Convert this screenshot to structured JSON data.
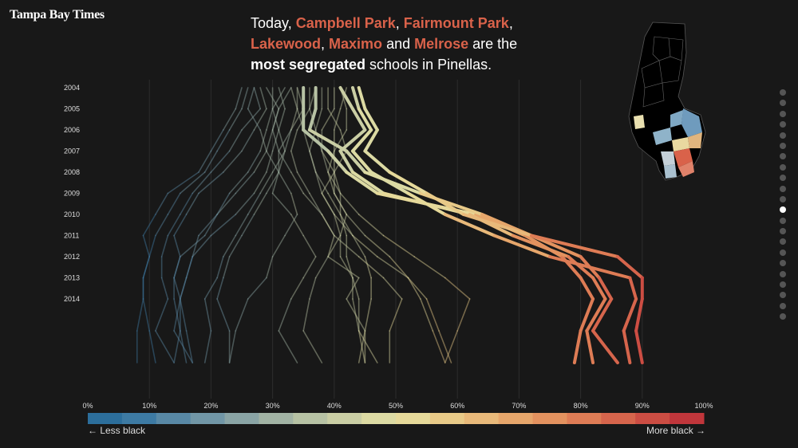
{
  "brand": {
    "logo": "Tampa Bay Times"
  },
  "headline": {
    "prefix": "Today, ",
    "schools": [
      "Campbell Park",
      "Fairmount Park",
      "Lakewood",
      "Maximo",
      "Melrose"
    ],
    "sep1": ", ",
    "sep_and": " and ",
    "mid": " are the",
    "strong": "most segregated",
    "suffix": " schools in Pinellas.",
    "highlight_color": "#d9624a"
  },
  "legend": {
    "left_label": "← Less black",
    "right_label": "More black →",
    "colors": [
      "#2c6e9b",
      "#3d7aa3",
      "#5888a5",
      "#7196a6",
      "#8aa4a5",
      "#a2b3a4",
      "#b7c2a4",
      "#cacea4",
      "#dcdaa3",
      "#e6d99a",
      "#e8ca88",
      "#e8b97a",
      "#e6a66b",
      "#e3925f",
      "#de7c55",
      "#d6654c",
      "#cc4d43",
      "#c0363b"
    ]
  },
  "pagination": {
    "count": 22,
    "active_index": 11
  },
  "chart_data": {
    "type": "line",
    "title": "",
    "xlabel": "",
    "ylabel": "",
    "x_ticks": [
      "0%",
      "10%",
      "20%",
      "30%",
      "40%",
      "50%",
      "60%",
      "70%",
      "80%",
      "90%",
      "100%"
    ],
    "xlim": [
      0,
      100
    ],
    "y_ticks": [
      "2004",
      "2005",
      "2006",
      "2007",
      "2008",
      "2009",
      "2010",
      "2011",
      "2012",
      "2013",
      "2014"
    ],
    "grid": true,
    "highlighted": [
      {
        "values": [
          35,
          35,
          35,
          39,
          42,
          47,
          63,
          71,
          77,
          80,
          82,
          80,
          79
        ]
      },
      {
        "values": [
          41,
          43,
          45,
          41,
          43,
          48,
          62,
          69,
          78,
          82,
          84,
          81,
          82
        ]
      },
      {
        "values": [
          37,
          37,
          36,
          42,
          45,
          54,
          64,
          72,
          80,
          83,
          85,
          82,
          86
        ]
      },
      {
        "values": [
          43,
          44,
          46,
          43,
          46,
          52,
          58,
          66,
          75,
          88,
          89,
          87,
          88
        ]
      },
      {
        "values": [
          44,
          45,
          47,
          45,
          49,
          55,
          61,
          72,
          86,
          90,
          90,
          89,
          90
        ]
      }
    ],
    "background": [
      {
        "values": [
          25,
          24,
          22,
          20,
          18,
          13,
          11,
          9,
          10,
          9,
          9,
          8,
          8
        ]
      },
      {
        "values": [
          26,
          25,
          23,
          21,
          19,
          15,
          13,
          11,
          10,
          9,
          9,
          10,
          11
        ]
      },
      {
        "values": [
          27,
          28,
          25,
          23,
          20,
          17,
          15,
          13,
          12,
          12,
          13,
          11,
          14
        ]
      },
      {
        "values": [
          28,
          29,
          27,
          25,
          22,
          18,
          16,
          14,
          15,
          14,
          14,
          15,
          16
        ]
      },
      {
        "values": [
          29,
          31,
          30,
          29,
          27,
          24,
          21,
          18,
          17,
          16,
          15,
          14,
          17
        ]
      },
      {
        "values": [
          30,
          30,
          29,
          28,
          26,
          23,
          21,
          19,
          15,
          14,
          15,
          15,
          14
        ]
      },
      {
        "values": [
          31,
          32,
          31,
          30,
          29,
          27,
          24,
          20,
          17,
          16,
          15,
          16,
          17
        ]
      },
      {
        "values": [
          32,
          30,
          31,
          32,
          30,
          28,
          26,
          24,
          22,
          21,
          19,
          20,
          19
        ]
      },
      {
        "values": [
          33,
          34,
          33,
          31,
          31,
          29,
          27,
          25,
          23,
          22,
          21,
          23,
          23
        ]
      },
      {
        "values": [
          27,
          26,
          28,
          29,
          31,
          33,
          34,
          32,
          30,
          29,
          26,
          24,
          23
        ]
      },
      {
        "values": [
          34,
          35,
          33,
          32,
          31,
          30,
          33,
          35,
          37,
          35,
          33,
          31,
          34
        ]
      },
      {
        "values": [
          36,
          36,
          34,
          33,
          34,
          36,
          38,
          40,
          39,
          37,
          36,
          35,
          38
        ]
      },
      {
        "values": [
          38,
          38,
          37,
          36,
          37,
          39,
          41,
          42,
          42,
          43,
          44,
          44,
          45
        ]
      },
      {
        "values": [
          40,
          40,
          38,
          38,
          40,
          40,
          42,
          41,
          41,
          43,
          43,
          44,
          47
        ]
      },
      {
        "values": [
          42,
          41,
          40,
          40,
          40,
          41,
          41,
          43,
          45,
          46,
          46,
          45,
          45
        ]
      },
      {
        "values": [
          39,
          39,
          41,
          42,
          40,
          38,
          40,
          43,
          47,
          52,
          54,
          56,
          58
        ]
      },
      {
        "values": [
          37,
          36,
          37,
          38,
          39,
          40,
          42,
          45,
          49,
          52,
          55,
          57,
          59
        ]
      },
      {
        "values": [
          41,
          42,
          42,
          40,
          39,
          41,
          44,
          48,
          53,
          58,
          62,
          60,
          58
        ]
      },
      {
        "values": [
          34,
          34,
          35,
          36,
          37,
          38,
          40,
          41,
          39,
          44,
          42,
          45,
          44
        ]
      },
      {
        "values": [
          33,
          31,
          30,
          31,
          33,
          35,
          38,
          40,
          44,
          48,
          51,
          49,
          49
        ]
      }
    ]
  }
}
